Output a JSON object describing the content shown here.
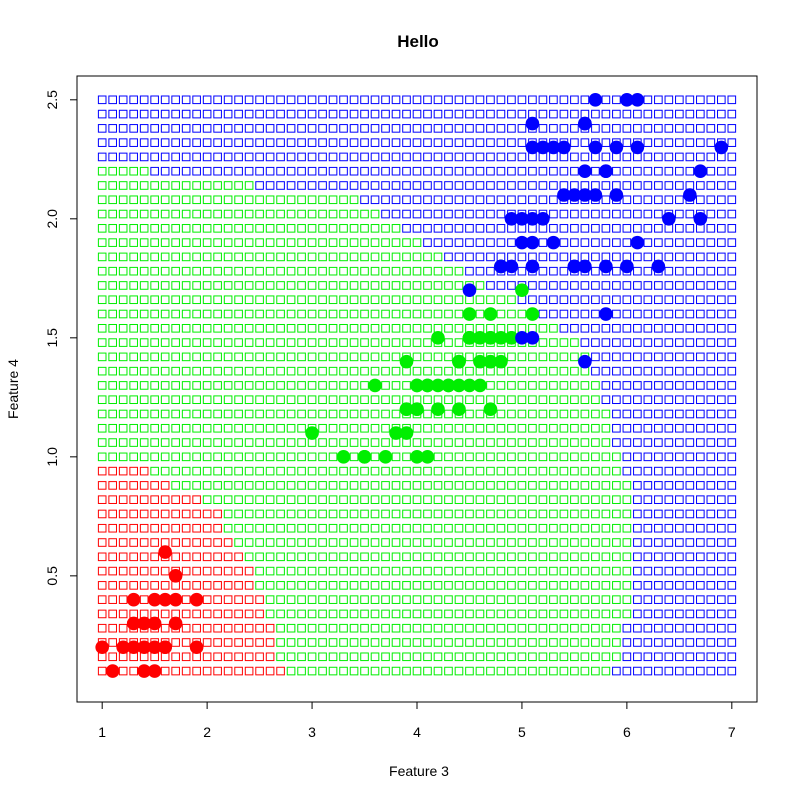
{
  "chart_data": {
    "type": "scatter",
    "title": "Hello",
    "xlabel": "Feature 3",
    "ylabel": "Feature 4",
    "xlim": [
      0.76,
      7.24
    ],
    "ylim": [
      -0.03,
      2.6
    ],
    "xticks": [
      1,
      2,
      3,
      4,
      5,
      6,
      7
    ],
    "yticks": [
      0.5,
      1.0,
      1.5,
      2.0,
      2.5
    ],
    "ytick_labels": [
      "0.5",
      "1.0",
      "1.5",
      "2.0",
      "2.5"
    ],
    "grid": false,
    "background_grid": {
      "x_range": [
        1.0,
        7.0
      ],
      "y_range": [
        0.1,
        2.5
      ],
      "x_steps": 60,
      "y_steps": 40,
      "regions": [
        {
          "color": "#ff0000",
          "boundary": [
            [
              0.97,
              1.0
            ],
            [
              1.3,
              0.97
            ],
            [
              1.8,
              0.85
            ],
            [
              2.1,
              0.77
            ],
            [
              2.4,
              0.55
            ],
            [
              2.6,
              0.3
            ],
            [
              2.75,
              0.07
            ]
          ]
        },
        {
          "color": "#0000ff",
          "boundary": [
            [
              1.0,
              2.23
            ],
            [
              2.5,
              2.23
            ],
            [
              3.5,
              2.08
            ],
            [
              4.5,
              1.75
            ],
            [
              5.2,
              1.6
            ],
            [
              5.6,
              1.45
            ],
            [
              5.8,
              1.2
            ],
            [
              6.0,
              0.9
            ],
            [
              6.1,
              0.55
            ],
            [
              6.0,
              0.3
            ],
            [
              5.85,
              0.07
            ]
          ]
        }
      ]
    },
    "series": [
      {
        "color": "#ff0000",
        "points": [
          [
            1.4,
            0.2
          ],
          [
            1.3,
            0.2
          ],
          [
            1.5,
            0.2
          ],
          [
            1.7,
            0.4
          ],
          [
            1.4,
            0.3
          ],
          [
            1.5,
            0.1
          ],
          [
            1.6,
            0.2
          ],
          [
            1.1,
            0.1
          ],
          [
            1.2,
            0.2
          ],
          [
            1.3,
            0.4
          ],
          [
            1.0,
            0.2
          ],
          [
            1.7,
            0.5
          ],
          [
            1.9,
            0.2
          ],
          [
            1.6,
            0.4
          ],
          [
            1.5,
            0.4
          ],
          [
            1.4,
            0.1
          ],
          [
            1.3,
            0.3
          ],
          [
            1.6,
            0.6
          ],
          [
            1.9,
            0.4
          ],
          [
            1.7,
            0.3
          ],
          [
            1.5,
            0.3
          ],
          [
            1.6,
            0.2
          ]
        ]
      },
      {
        "color": "#00ee00",
        "points": [
          [
            4.7,
            1.4
          ],
          [
            4.5,
            1.5
          ],
          [
            4.9,
            1.5
          ],
          [
            4.0,
            1.3
          ],
          [
            4.6,
            1.5
          ],
          [
            4.5,
            1.3
          ],
          [
            4.7,
            1.6
          ],
          [
            3.3,
            1.0
          ],
          [
            4.6,
            1.3
          ],
          [
            3.9,
            1.4
          ],
          [
            3.5,
            1.0
          ],
          [
            4.2,
            1.5
          ],
          [
            4.0,
            1.0
          ],
          [
            4.7,
            1.4
          ],
          [
            3.6,
            1.3
          ],
          [
            4.4,
            1.4
          ],
          [
            4.1,
            1.0
          ],
          [
            4.5,
            1.5
          ],
          [
            3.9,
            1.1
          ],
          [
            4.8,
            1.8
          ],
          [
            4.0,
            1.3
          ],
          [
            4.9,
            1.5
          ],
          [
            4.7,
            1.2
          ],
          [
            4.3,
            1.3
          ],
          [
            4.4,
            1.4
          ],
          [
            4.8,
            1.4
          ],
          [
            5.0,
            1.7
          ],
          [
            4.5,
            1.5
          ],
          [
            3.5,
            1.0
          ],
          [
            3.8,
            1.1
          ],
          [
            3.7,
            1.0
          ],
          [
            3.9,
            1.2
          ],
          [
            5.1,
            1.6
          ],
          [
            4.5,
            1.6
          ],
          [
            4.7,
            1.5
          ],
          [
            4.4,
            1.3
          ],
          [
            4.1,
            1.3
          ],
          [
            4.0,
            1.2
          ],
          [
            4.4,
            1.2
          ],
          [
            4.6,
            1.4
          ],
          [
            4.0,
            1.2
          ],
          [
            3.0,
            1.1
          ],
          [
            4.2,
            1.3
          ],
          [
            4.2,
            1.2
          ],
          [
            4.3,
            1.3
          ],
          [
            3.9,
            1.2
          ],
          [
            4.1,
            1.3
          ],
          [
            4.4,
            1.4
          ],
          [
            4.7,
            1.5
          ],
          [
            4.8,
            1.5
          ]
        ]
      },
      {
        "color": "#0000ff",
        "points": [
          [
            6.0,
            2.5
          ],
          [
            5.1,
            1.9
          ],
          [
            5.9,
            2.1
          ],
          [
            5.6,
            1.8
          ],
          [
            5.8,
            2.2
          ],
          [
            6.6,
            2.1
          ],
          [
            4.5,
            1.7
          ],
          [
            6.3,
            1.8
          ],
          [
            5.8,
            1.8
          ],
          [
            6.1,
            2.5
          ],
          [
            5.1,
            2.0
          ],
          [
            5.3,
            1.9
          ],
          [
            5.5,
            2.1
          ],
          [
            5.0,
            2.0
          ],
          [
            5.1,
            2.4
          ],
          [
            5.3,
            2.3
          ],
          [
            5.5,
            1.8
          ],
          [
            6.7,
            2.2
          ],
          [
            6.9,
            2.3
          ],
          [
            5.0,
            1.5
          ],
          [
            5.7,
            2.3
          ],
          [
            4.9,
            2.0
          ],
          [
            6.7,
            2.0
          ],
          [
            4.9,
            1.8
          ],
          [
            5.7,
            2.1
          ],
          [
            6.0,
            1.8
          ],
          [
            4.8,
            1.8
          ],
          [
            5.8,
            1.6
          ],
          [
            6.1,
            1.9
          ],
          [
            6.4,
            2.0
          ],
          [
            5.6,
            2.2
          ],
          [
            5.1,
            1.5
          ],
          [
            5.6,
            1.4
          ],
          [
            6.1,
            2.3
          ],
          [
            5.6,
            2.4
          ],
          [
            5.5,
            1.8
          ],
          [
            5.4,
            2.1
          ],
          [
            5.6,
            2.4
          ],
          [
            5.1,
            2.3
          ],
          [
            5.9,
            2.3
          ],
          [
            5.7,
            2.5
          ],
          [
            5.2,
            2.3
          ],
          [
            5.0,
            1.9
          ],
          [
            5.2,
            2.0
          ],
          [
            5.4,
            2.3
          ],
          [
            5.1,
            1.8
          ],
          [
            4.8,
            1.8
          ],
          [
            5.6,
            2.1
          ],
          [
            5.8,
            2.2
          ]
        ]
      }
    ]
  }
}
